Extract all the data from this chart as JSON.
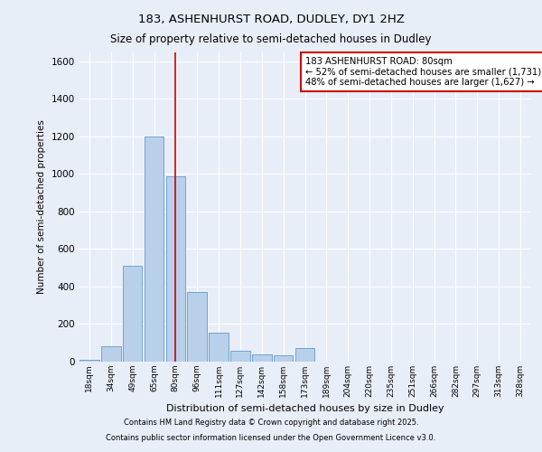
{
  "title_line1": "183, ASHENHURST ROAD, DUDLEY, DY1 2HZ",
  "title_line2": "Size of property relative to semi-detached houses in Dudley",
  "xlabel": "Distribution of semi-detached houses by size in Dudley",
  "ylabel": "Number of semi-detached properties",
  "categories": [
    "18sqm",
    "34sqm",
    "49sqm",
    "65sqm",
    "80sqm",
    "96sqm",
    "111sqm",
    "127sqm",
    "142sqm",
    "158sqm",
    "173sqm",
    "189sqm",
    "204sqm",
    "220sqm",
    "235sqm",
    "251sqm",
    "266sqm",
    "282sqm",
    "297sqm",
    "313sqm",
    "328sqm"
  ],
  "values": [
    10,
    80,
    510,
    1200,
    990,
    370,
    155,
    60,
    40,
    35,
    70,
    0,
    0,
    0,
    0,
    0,
    0,
    0,
    0,
    0,
    0
  ],
  "bar_color": "#b8d0ea",
  "bar_edge_color": "#6699cc",
  "highlight_index": 4,
  "highlight_line_color": "#cc0000",
  "ylim": [
    0,
    1650
  ],
  "yticks": [
    0,
    200,
    400,
    600,
    800,
    1000,
    1200,
    1400,
    1600
  ],
  "annotation_text": "183 ASHENHURST ROAD: 80sqm\n← 52% of semi-detached houses are smaller (1,731)\n48% of semi-detached houses are larger (1,627) →",
  "annotation_box_color": "#cc0000",
  "footer_line1": "Contains HM Land Registry data © Crown copyright and database right 2025.",
  "footer_line2": "Contains public sector information licensed under the Open Government Licence v3.0.",
  "bg_color": "#e8eef8",
  "plot_bg_color": "#e8eef8",
  "grid_color": "#ffffff"
}
